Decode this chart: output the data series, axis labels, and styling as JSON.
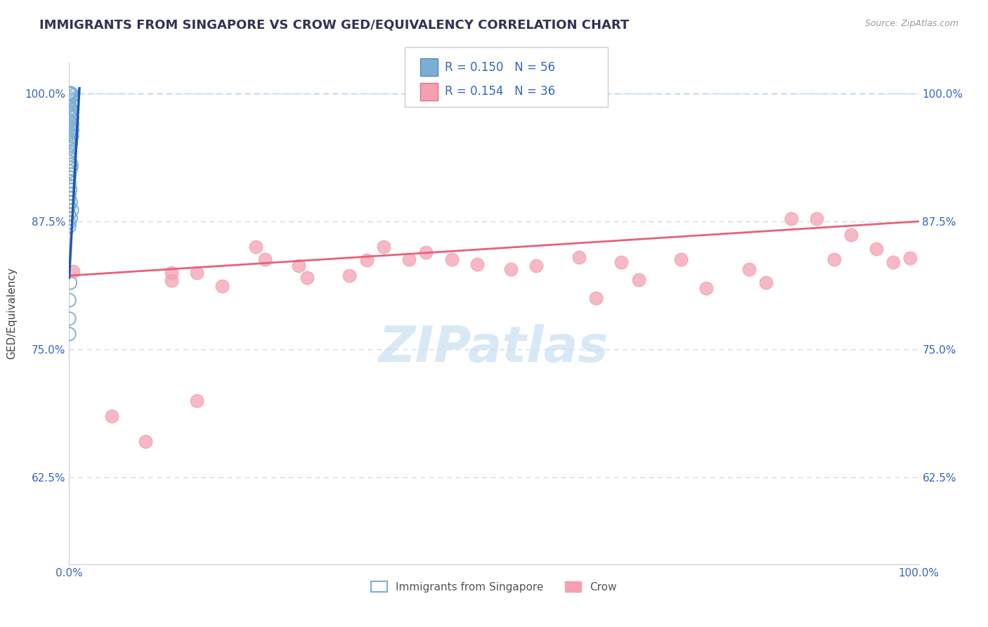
{
  "title": "IMMIGRANTS FROM SINGAPORE VS CROW GED/EQUIVALENCY CORRELATION CHART",
  "source": "Source: ZipAtlas.com",
  "ylabel": "GED/Equivalency",
  "legend_label1": "Immigrants from Singapore",
  "legend_label2": "Crow",
  "r1": "0.150",
  "n1": "56",
  "r2": "0.154",
  "n2": "36",
  "color_blue": "#7AAFD4",
  "color_blue_fill": "none",
  "color_pink": "#F4A0B0",
  "color_blue_line": "#2255AA",
  "color_pink_line": "#E8607A",
  "color_dashed": "#AACCDD",
  "background_color": "#FFFFFF",
  "grid_color": "#CCDDEE",
  "watermark_color": "#D8E8F5",
  "title_color": "#333355",
  "tick_color": "#3366BB",
  "label_color": "#444444",
  "blue_points_x": [
    0.0,
    0.0,
    0.0,
    0.0,
    0.0,
    0.0,
    0.0,
    0.0,
    0.0,
    0.0,
    0.0,
    0.0,
    0.0,
    0.0,
    0.0,
    0.0,
    0.0,
    0.0,
    0.0,
    0.0,
    0.0,
    0.0,
    0.0,
    0.0,
    0.0,
    0.0,
    0.0,
    0.0,
    0.0,
    0.0,
    0.0,
    0.0,
    0.0,
    0.0,
    0.0,
    0.0,
    0.0,
    0.0,
    0.0,
    0.0,
    0.0,
    0.0,
    0.0,
    0.0,
    0.0,
    0.0,
    0.0,
    0.0,
    0.0,
    0.0,
    0.0,
    0.0,
    0.0,
    0.0,
    0.0,
    0.0
  ],
  "blue_points_y": [
    1.0,
    1.0,
    1.0,
    1.0,
    0.998,
    0.996,
    0.994,
    0.992,
    0.99,
    0.988,
    0.986,
    0.984,
    0.982,
    0.98,
    0.978,
    0.976,
    0.974,
    0.972,
    0.97,
    0.968,
    0.966,
    0.964,
    0.962,
    0.96,
    0.958,
    0.956,
    0.954,
    0.952,
    0.95,
    0.948,
    0.946,
    0.943,
    0.94,
    0.937,
    0.933,
    0.93,
    0.927,
    0.924,
    0.921,
    0.918,
    0.914,
    0.91,
    0.906,
    0.902,
    0.898,
    0.894,
    0.89,
    0.886,
    0.882,
    0.878,
    0.874,
    0.87,
    0.815,
    0.798,
    0.78,
    0.765
  ],
  "pink_points_x": [
    0.005,
    0.05,
    0.09,
    0.12,
    0.12,
    0.15,
    0.18,
    0.22,
    0.23,
    0.27,
    0.28,
    0.33,
    0.35,
    0.37,
    0.4,
    0.42,
    0.45,
    0.48,
    0.52,
    0.55,
    0.6,
    0.62,
    0.65,
    0.67,
    0.72,
    0.75,
    0.8,
    0.82,
    0.85,
    0.88,
    0.9,
    0.92,
    0.95,
    0.97,
    0.99,
    0.15
  ],
  "pink_points_y": [
    0.826,
    0.685,
    0.66,
    0.825,
    0.817,
    0.825,
    0.812,
    0.85,
    0.838,
    0.832,
    0.82,
    0.822,
    0.837,
    0.85,
    0.838,
    0.845,
    0.838,
    0.833,
    0.828,
    0.832,
    0.84,
    0.8,
    0.835,
    0.818,
    0.838,
    0.81,
    0.828,
    0.815,
    0.878,
    0.878,
    0.838,
    0.862,
    0.848,
    0.835,
    0.839,
    0.7
  ],
  "xlim": [
    0.0,
    1.0
  ],
  "ylim": [
    0.54,
    1.03
  ],
  "y_ticks": [
    0.625,
    0.75,
    0.875,
    1.0
  ],
  "y_tick_labels": [
    "62.5%",
    "75.0%",
    "87.5%",
    "100.0%"
  ]
}
